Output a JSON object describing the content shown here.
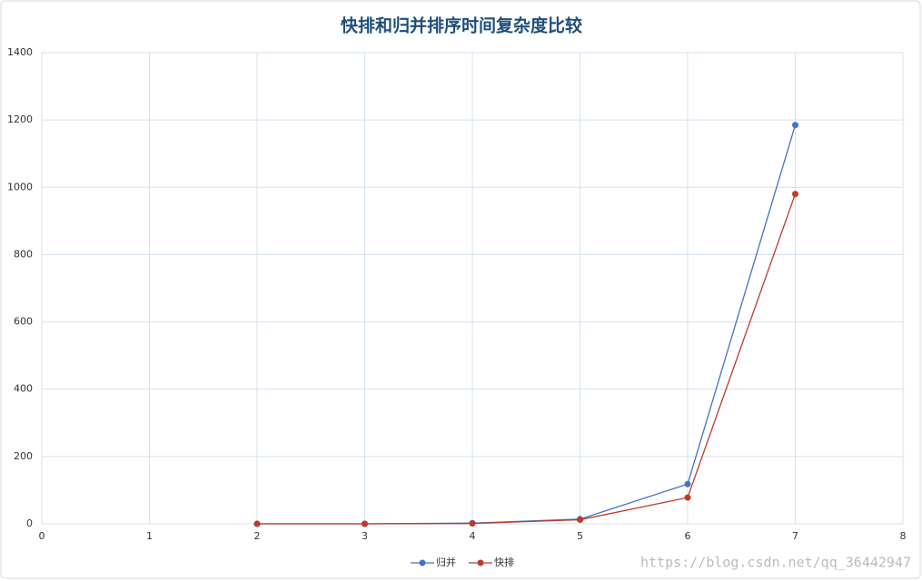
{
  "chart_data": {
    "type": "line",
    "title": "快排和归并排序时间复杂度比较",
    "x": [
      2,
      3,
      4,
      5,
      6,
      7
    ],
    "series": [
      {
        "name": "归并",
        "color": "#4472c4",
        "values": [
          0,
          0,
          2,
          14,
          118,
          1185
        ]
      },
      {
        "name": "快排",
        "color": "#c0392b",
        "values": [
          0,
          0,
          1,
          12,
          78,
          980
        ]
      }
    ],
    "xlim": [
      0,
      8
    ],
    "xticks": [
      0,
      1,
      2,
      3,
      4,
      5,
      6,
      7,
      8
    ],
    "ylim": [
      0,
      1400
    ],
    "yticks": [
      0,
      200,
      400,
      600,
      800,
      1000,
      1200,
      1400
    ],
    "grid": true,
    "legend": "bottom",
    "annotations": [
      "https://blog.csdn.net/qq_36442947"
    ]
  }
}
